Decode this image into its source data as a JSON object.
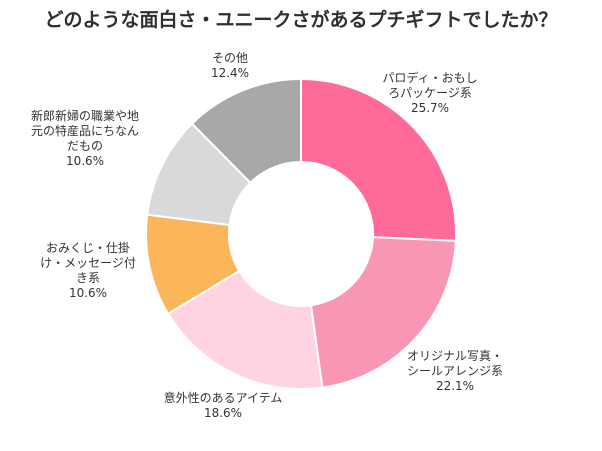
{
  "chart_data": {
    "type": "pie",
    "variant": "donut",
    "title": "どのような面白さ・ユニークさがあるプチギフトでしたか？",
    "start_angle": "12 o'clock",
    "direction": "clockwise",
    "slices": [
      {
        "label_lines": [
          "パロディ・おもし",
          "ろパッケージ系"
        ],
        "value": 25.7,
        "value_label": "25.7%",
        "color": "#ff6b98"
      },
      {
        "label_lines": [
          "オリジナル写真・",
          "シールアレンジ系"
        ],
        "value": 22.1,
        "value_label": "22.1%",
        "color": "#f896b4"
      },
      {
        "label_lines": [
          "意外性のあるアイテム"
        ],
        "value": 18.6,
        "value_label": "18.6%",
        "color": "#ffd3e0"
      },
      {
        "label_lines": [
          "おみくじ・仕掛",
          "け・メッセージ付",
          "き系"
        ],
        "value": 10.6,
        "value_label": "10.6%",
        "color": "#fbb65a"
      },
      {
        "label_lines": [
          "新郎新婦の職業や地",
          "元の特産品にちなん",
          "だもの"
        ],
        "value": 10.6,
        "value_label": "10.6%",
        "color": "#d9d9d9"
      },
      {
        "label_lines": [
          "その他"
        ],
        "value": 12.4,
        "value_label": "12.4%",
        "color": "#a8a8a8"
      }
    ]
  }
}
